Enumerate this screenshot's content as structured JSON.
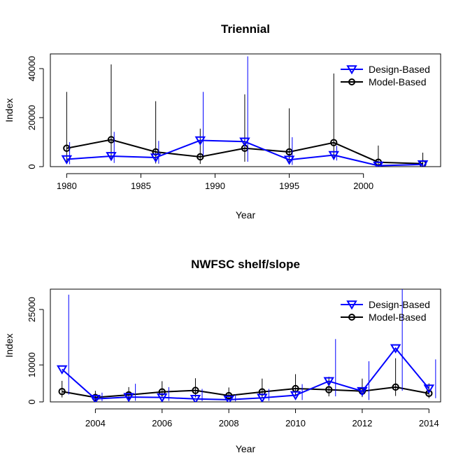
{
  "chart_data": [
    {
      "type": "line",
      "title": "Triennial",
      "xlabel": "Year",
      "ylabel": "Index",
      "xlim": [
        1978.9,
        2005.2
      ],
      "ylim": [
        0,
        46000
      ],
      "x_ticks": [
        1980,
        1985,
        1990,
        1995,
        2000
      ],
      "y_ticks": [
        0,
        20000,
        40000
      ],
      "legend_position": "top-right",
      "series": [
        {
          "name": "Design-Based",
          "color": "#0000ff",
          "marker": "triangle-down",
          "x_offset": 0.2,
          "points": [
            {
              "x": 1980,
              "y": 3000,
              "lo": 1000,
              "hi": 10000
            },
            {
              "x": 1983,
              "y": 4300,
              "lo": 1500,
              "hi": 14200
            },
            {
              "x": 1986,
              "y": 3700,
              "lo": 1200,
              "hi": 10500
            },
            {
              "x": 1989,
              "y": 10700,
              "lo": 4500,
              "hi": 30500
            },
            {
              "x": 1992,
              "y": 10200,
              "lo": 2000,
              "hi": 45000
            },
            {
              "x": 1995,
              "y": 2800,
              "lo": 700,
              "hi": 12000
            },
            {
              "x": 1998,
              "y": 4700,
              "lo": 2500,
              "hi": 8500
            },
            {
              "x": 2001,
              "y": 400,
              "lo": 100,
              "hi": 700
            },
            {
              "x": 2004,
              "y": 900,
              "lo": 400,
              "hi": 1500
            }
          ]
        },
        {
          "name": "Model-Based",
          "color": "#000000",
          "marker": "circle",
          "x_offset": 0,
          "points": [
            {
              "x": 1980,
              "y": 7500,
              "lo": 1800,
              "hi": 30500
            },
            {
              "x": 1983,
              "y": 11000,
              "lo": 3000,
              "hi": 41700
            },
            {
              "x": 1986,
              "y": 6000,
              "lo": 1300,
              "hi": 26700
            },
            {
              "x": 1989,
              "y": 4000,
              "lo": 1100,
              "hi": 15500
            },
            {
              "x": 1992,
              "y": 7500,
              "lo": 2000,
              "hi": 29500
            },
            {
              "x": 1995,
              "y": 6000,
              "lo": 1700,
              "hi": 23800
            },
            {
              "x": 1998,
              "y": 9800,
              "lo": 2700,
              "hi": 38000
            },
            {
              "x": 2001,
              "y": 1800,
              "lo": 500,
              "hi": 8600
            },
            {
              "x": 2004,
              "y": 1200,
              "lo": 300,
              "hi": 5700
            }
          ]
        }
      ]
    },
    {
      "type": "line",
      "title": "NWFSC shelf/slope",
      "xlabel": "Year",
      "ylabel": "Index",
      "xlim": [
        2002.65,
        2014.35
      ],
      "ylim": [
        0,
        30500
      ],
      "x_ticks": [
        2004,
        2006,
        2008,
        2010,
        2012,
        2014
      ],
      "y_ticks": [
        0,
        10000,
        25000
      ],
      "legend_position": "top-right",
      "series": [
        {
          "name": "Design-Based",
          "color": "#0000ff",
          "marker": "triangle-down",
          "x_offset": 0.2,
          "points": [
            {
              "x": 2003,
              "y": 8800,
              "lo": 2000,
              "hi": 29000
            },
            {
              "x": 2004,
              "y": 800,
              "lo": 200,
              "hi": 2500
            },
            {
              "x": 2005,
              "y": 1300,
              "lo": 300,
              "hi": 4900
            },
            {
              "x": 2006,
              "y": 1200,
              "lo": 300,
              "hi": 4000
            },
            {
              "x": 2007,
              "y": 800,
              "lo": 200,
              "hi": 3500
            },
            {
              "x": 2008,
              "y": 600,
              "lo": 150,
              "hi": 2000
            },
            {
              "x": 2009,
              "y": 1100,
              "lo": 300,
              "hi": 3500
            },
            {
              "x": 2010,
              "y": 1800,
              "lo": 500,
              "hi": 4800
            },
            {
              "x": 2011,
              "y": 5600,
              "lo": 1500,
              "hi": 17000
            },
            {
              "x": 2012,
              "y": 2900,
              "lo": 500,
              "hi": 11000
            },
            {
              "x": 2013,
              "y": 14500,
              "lo": 3000,
              "hi": 31000
            },
            {
              "x": 2014,
              "y": 3600,
              "lo": 1000,
              "hi": 11500
            }
          ]
        },
        {
          "name": "Model-Based",
          "color": "#000000",
          "marker": "circle",
          "x_offset": 0,
          "points": [
            {
              "x": 2003,
              "y": 2800,
              "lo": 1200,
              "hi": 5700
            },
            {
              "x": 2004,
              "y": 1200,
              "lo": 500,
              "hi": 3000
            },
            {
              "x": 2005,
              "y": 1900,
              "lo": 700,
              "hi": 4000
            },
            {
              "x": 2006,
              "y": 2700,
              "lo": 1100,
              "hi": 5600
            },
            {
              "x": 2007,
              "y": 3100,
              "lo": 1200,
              "hi": 6400
            },
            {
              "x": 2008,
              "y": 1700,
              "lo": 700,
              "hi": 3900
            },
            {
              "x": 2009,
              "y": 2700,
              "lo": 1100,
              "hi": 6300
            },
            {
              "x": 2010,
              "y": 3600,
              "lo": 1500,
              "hi": 7500
            },
            {
              "x": 2011,
              "y": 3300,
              "lo": 1500,
              "hi": 6800
            },
            {
              "x": 2012,
              "y": 2900,
              "lo": 1300,
              "hi": 6300
            },
            {
              "x": 2013,
              "y": 4000,
              "lo": 1600,
              "hi": 11800
            },
            {
              "x": 2014,
              "y": 2300,
              "lo": 1000,
              "hi": 5000
            }
          ]
        }
      ]
    }
  ]
}
